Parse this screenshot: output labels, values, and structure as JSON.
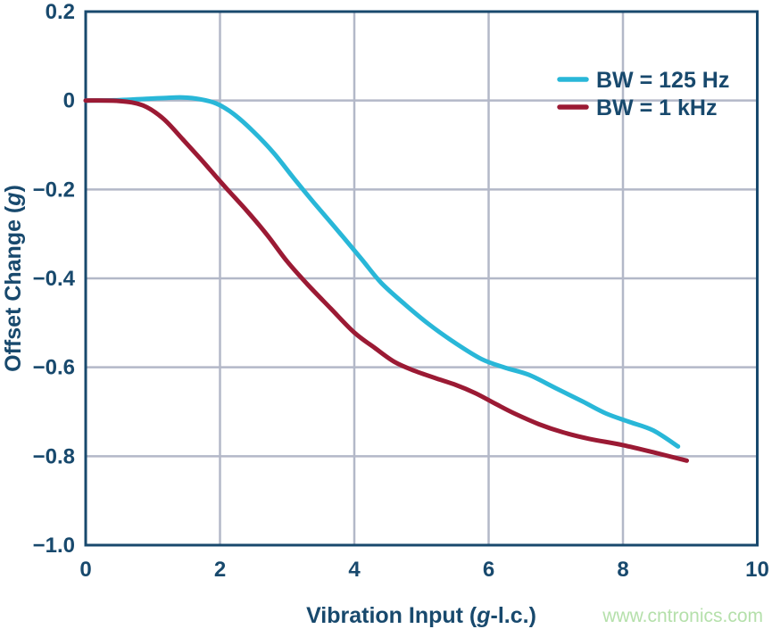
{
  "watermark": {
    "text": "www.cntronics.com",
    "color": "#b5e0ab"
  },
  "chart_data": {
    "type": "line",
    "title": "",
    "xlabel": {
      "pre": "Vibration Input (",
      "italic": "g",
      "post": "-l.c.)"
    },
    "ylabel": {
      "pre": "Offset Change (",
      "italic": "g",
      "post": ")"
    },
    "xlim": [
      0,
      10
    ],
    "ylim": [
      -1.0,
      0.2
    ],
    "x_ticks": {
      "values": [
        0,
        2,
        4,
        6,
        8,
        10
      ],
      "labels": [
        "0",
        "2",
        "4",
        "6",
        "8",
        "10"
      ]
    },
    "y_ticks": {
      "values": [
        0.2,
        0,
        -0.2,
        -0.4,
        -0.6,
        -0.8,
        -1.0
      ],
      "labels": [
        "0.2",
        "0",
        "−0.2",
        "−0.4",
        "−0.6",
        "−0.8",
        "−1.0"
      ]
    },
    "grid": true,
    "legend_position": "top-right-inside",
    "colors": {
      "axis": "#18496d",
      "grid": "#b3b8c8",
      "background": "#ffffff"
    },
    "series": [
      {
        "name": "BW = 125 Hz",
        "color": "#29b7d8",
        "points": [
          [
            0,
            0
          ],
          [
            0.5,
            0.001
          ],
          [
            0.9,
            0.004
          ],
          [
            1.2,
            0.006
          ],
          [
            1.45,
            0.007
          ],
          [
            1.7,
            0.003
          ],
          [
            1.95,
            -0.007
          ],
          [
            2.2,
            -0.03
          ],
          [
            2.5,
            -0.07
          ],
          [
            2.8,
            -0.118
          ],
          [
            3.1,
            -0.175
          ],
          [
            3.4,
            -0.23
          ],
          [
            3.75,
            -0.292
          ],
          [
            4.1,
            -0.355
          ],
          [
            4.4,
            -0.41
          ],
          [
            4.75,
            -0.458
          ],
          [
            5.1,
            -0.502
          ],
          [
            5.5,
            -0.545
          ],
          [
            5.9,
            -0.582
          ],
          [
            6.25,
            -0.601
          ],
          [
            6.6,
            -0.617
          ],
          [
            7.0,
            -0.647
          ],
          [
            7.4,
            -0.677
          ],
          [
            7.75,
            -0.704
          ],
          [
            8.1,
            -0.723
          ],
          [
            8.45,
            -0.742
          ],
          [
            8.82,
            -0.778
          ]
        ]
      },
      {
        "name": "BW = 1 kHz",
        "color": "#9b1a34",
        "points": [
          [
            0,
            0
          ],
          [
            0.5,
            -0.001
          ],
          [
            0.85,
            -0.011
          ],
          [
            1.15,
            -0.04
          ],
          [
            1.45,
            -0.088
          ],
          [
            1.75,
            -0.138
          ],
          [
            2.05,
            -0.19
          ],
          [
            2.4,
            -0.248
          ],
          [
            2.7,
            -0.302
          ],
          [
            3.0,
            -0.362
          ],
          [
            3.3,
            -0.413
          ],
          [
            3.65,
            -0.468
          ],
          [
            4.0,
            -0.522
          ],
          [
            4.3,
            -0.556
          ],
          [
            4.6,
            -0.588
          ],
          [
            4.9,
            -0.608
          ],
          [
            5.2,
            -0.624
          ],
          [
            5.5,
            -0.639
          ],
          [
            5.8,
            -0.658
          ],
          [
            6.1,
            -0.682
          ],
          [
            6.4,
            -0.705
          ],
          [
            6.75,
            -0.728
          ],
          [
            7.1,
            -0.746
          ],
          [
            7.5,
            -0.761
          ],
          [
            8.0,
            -0.775
          ],
          [
            8.5,
            -0.793
          ],
          [
            8.95,
            -0.81
          ]
        ]
      }
    ]
  }
}
